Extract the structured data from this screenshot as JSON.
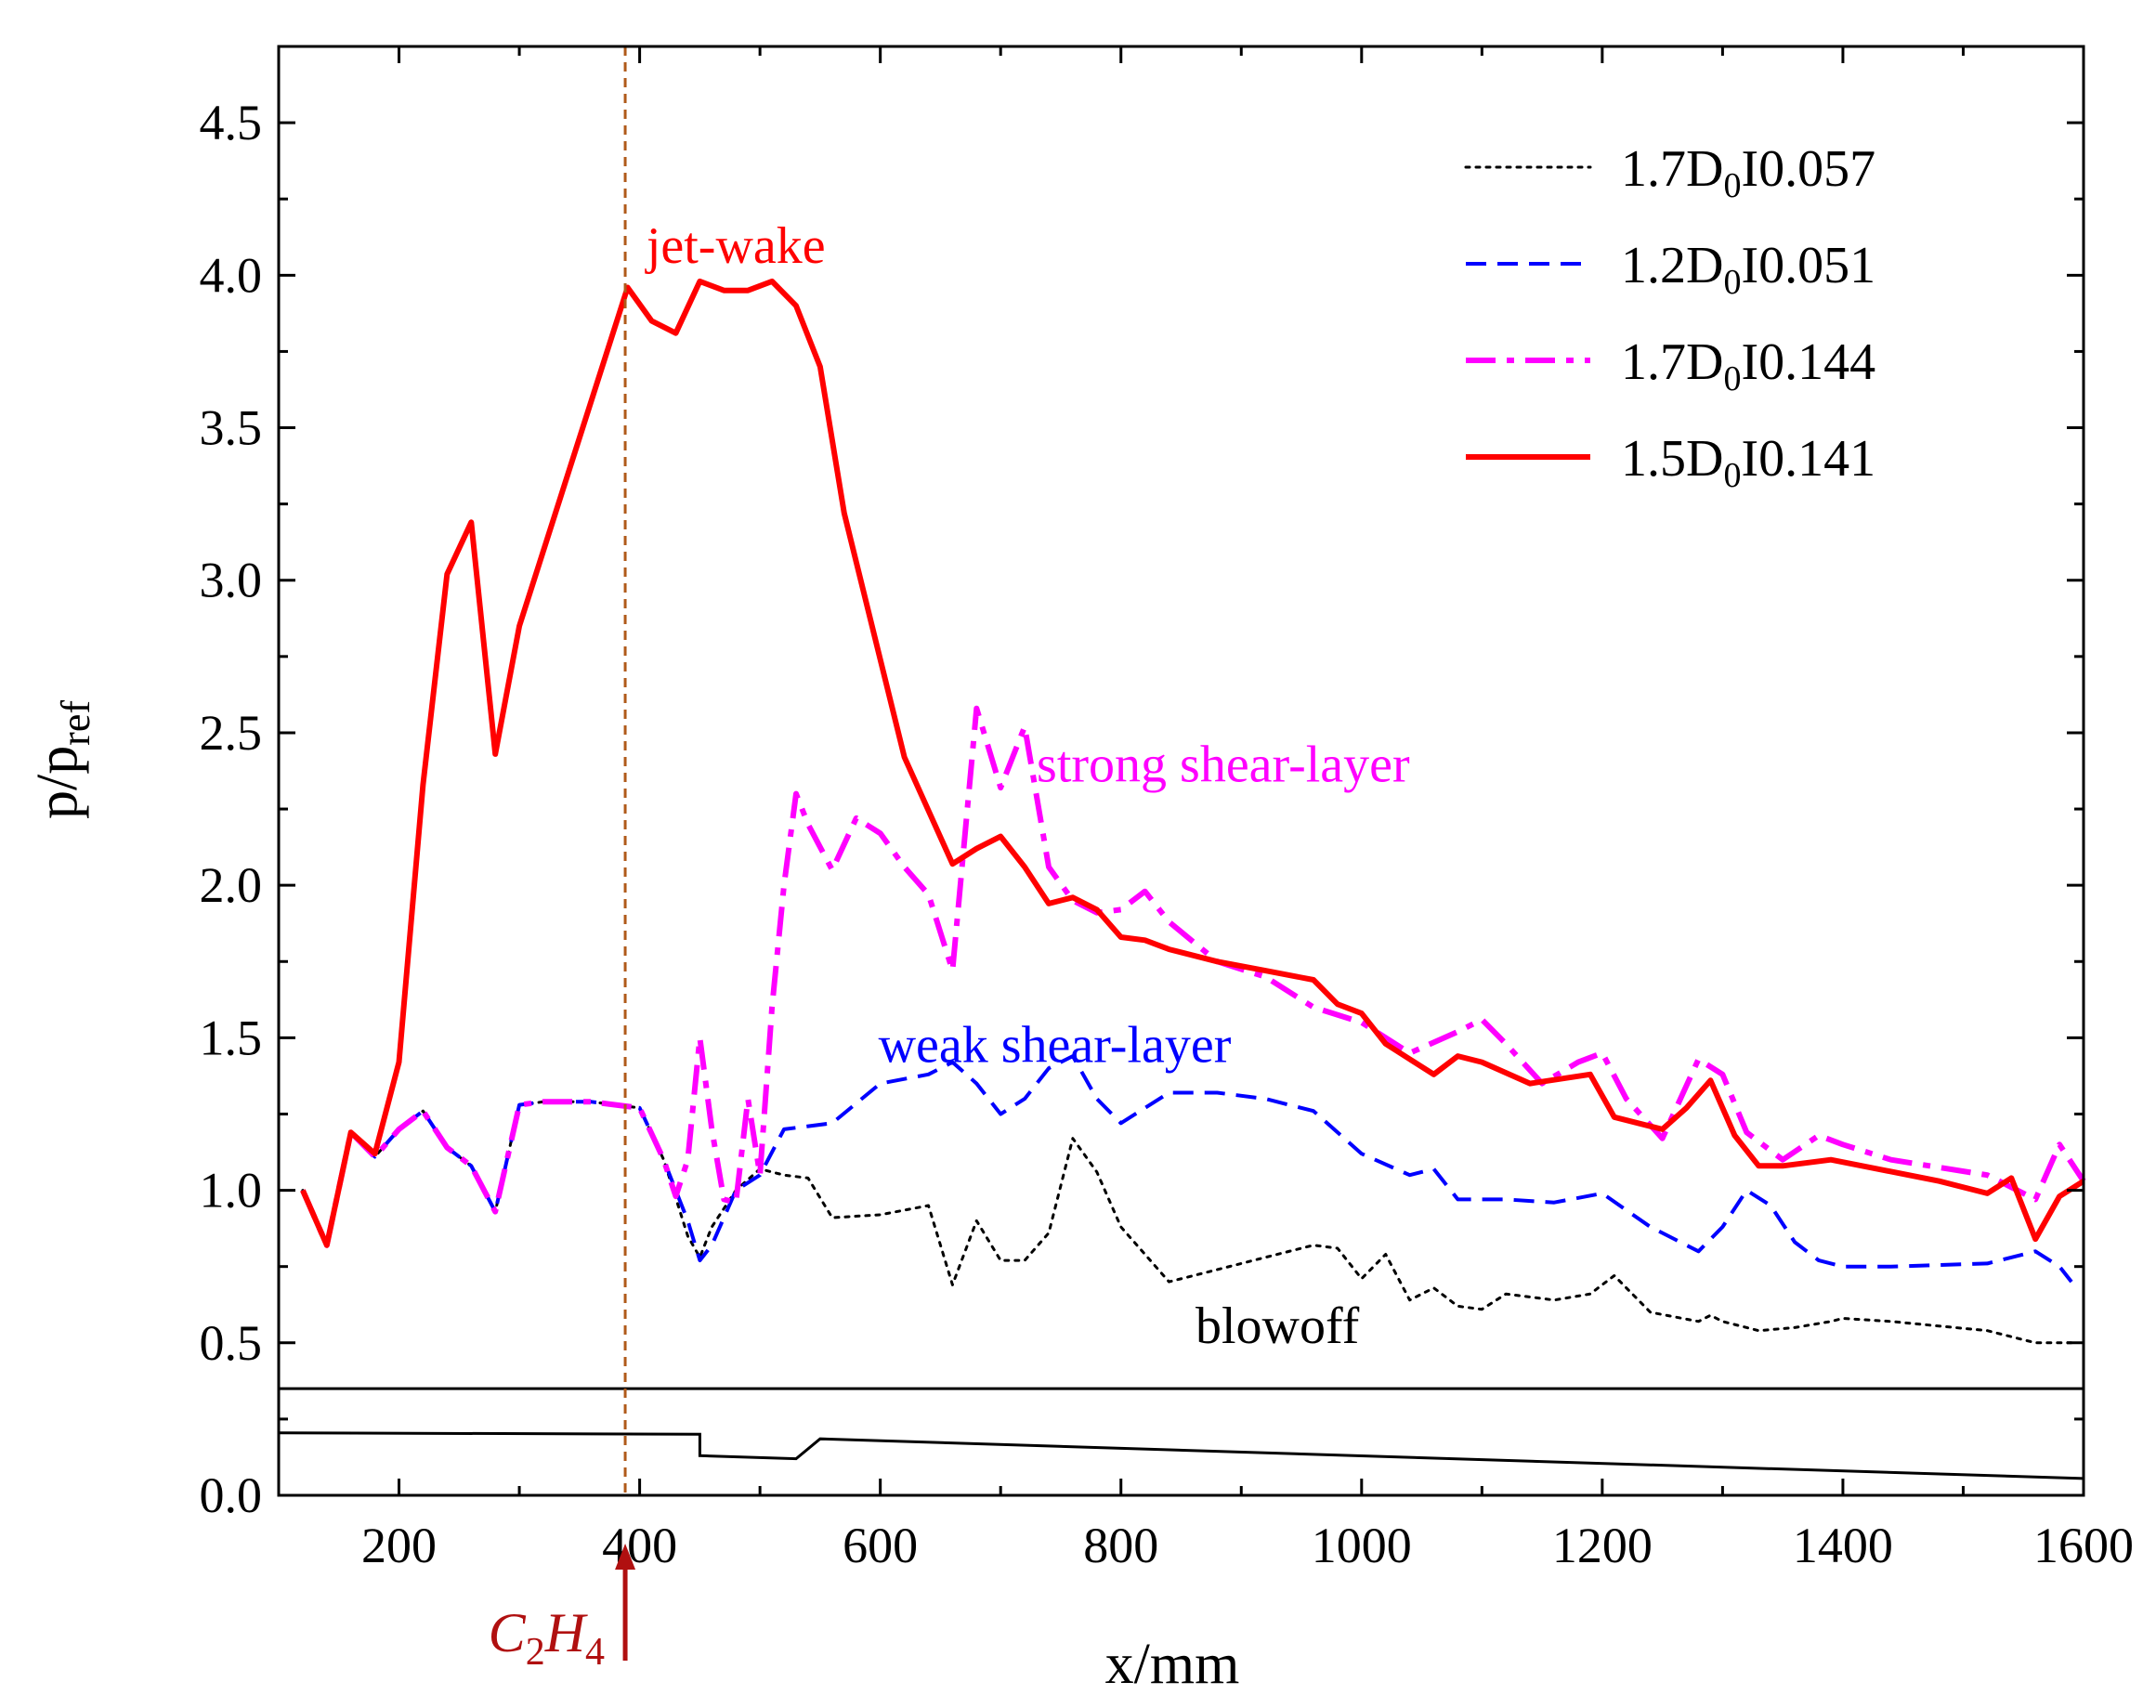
{
  "chart_data": {
    "type": "line",
    "xlabel": "x/mm",
    "ylabel": "p/p",
    "ylabel_sub": "ref",
    "xlim": [
      100,
      1600
    ],
    "ylim": [
      0,
      4.75
    ],
    "xticks": [
      200,
      400,
      600,
      800,
      1000,
      1200,
      1400,
      1600
    ],
    "yticks": [
      0.0,
      0.5,
      1.0,
      1.5,
      2.0,
      2.5,
      3.0,
      3.5,
      4.0,
      4.5
    ],
    "ytick_labels": [
      "0.0",
      "0.5",
      "1.0",
      "1.5",
      "2.0",
      "2.5",
      "3.0",
      "3.5",
      "4.0",
      "4.5"
    ],
    "grid": false,
    "legend_position": "top-right",
    "series": [
      {
        "name": "1.7D0I0.057",
        "legend_pre": "1.7D",
        "legend_sub": "0",
        "legend_post": "I0.057",
        "color": "#000000",
        "style": "dotted",
        "x": [
          120,
          140,
          160,
          180,
          200,
          220,
          240,
          260,
          280,
          300,
          320,
          340,
          360,
          380,
          400,
          420,
          440,
          450,
          460,
          480,
          500,
          520,
          540,
          560,
          600,
          640,
          660,
          680,
          700,
          720,
          740,
          760,
          780,
          800,
          840,
          880,
          920,
          960,
          980,
          1000,
          1020,
          1040,
          1060,
          1080,
          1100,
          1120,
          1160,
          1190,
          1210,
          1240,
          1280,
          1290,
          1300,
          1330,
          1360,
          1390,
          1400,
          1440,
          1520,
          1560,
          1590
        ],
        "y": [
          1.0,
          0.82,
          1.19,
          1.11,
          1.2,
          1.26,
          1.14,
          1.08,
          0.93,
          1.28,
          1.29,
          1.29,
          1.29,
          1.28,
          1.27,
          1.1,
          0.85,
          0.78,
          0.88,
          1.0,
          1.07,
          1.05,
          1.04,
          0.91,
          0.92,
          0.95,
          0.69,
          0.9,
          0.77,
          0.77,
          0.86,
          1.17,
          1.06,
          0.88,
          0.7,
          0.74,
          0.78,
          0.82,
          0.81,
          0.71,
          0.79,
          0.64,
          0.68,
          0.62,
          0.61,
          0.66,
          0.64,
          0.66,
          0.72,
          0.6,
          0.57,
          0.59,
          0.57,
          0.54,
          0.55,
          0.57,
          0.58,
          0.57,
          0.54,
          0.5,
          0.5
        ]
      },
      {
        "name": "1.2D0I0.051",
        "legend_pre": "1.2D",
        "legend_sub": "0",
        "legend_post": "I0.051",
        "color": "#0000ff",
        "style": "dashed",
        "x": [
          120,
          140,
          160,
          180,
          200,
          220,
          240,
          260,
          280,
          300,
          320,
          340,
          360,
          380,
          400,
          420,
          440,
          450,
          460,
          480,
          500,
          520,
          540,
          560,
          600,
          640,
          660,
          680,
          700,
          720,
          740,
          760,
          780,
          800,
          840,
          880,
          920,
          960,
          1000,
          1040,
          1060,
          1080,
          1120,
          1160,
          1200,
          1240,
          1280,
          1300,
          1320,
          1340,
          1360,
          1380,
          1400,
          1440,
          1520,
          1560,
          1580,
          1590
        ],
        "y": [
          1.0,
          0.82,
          1.19,
          1.11,
          1.2,
          1.26,
          1.14,
          1.08,
          0.93,
          1.28,
          1.29,
          1.29,
          1.29,
          1.28,
          1.27,
          1.1,
          0.9,
          0.77,
          0.82,
          1.0,
          1.05,
          1.2,
          1.21,
          1.22,
          1.35,
          1.38,
          1.42,
          1.35,
          1.25,
          1.3,
          1.4,
          1.44,
          1.3,
          1.22,
          1.32,
          1.32,
          1.3,
          1.26,
          1.12,
          1.05,
          1.07,
          0.97,
          0.97,
          0.96,
          0.99,
          0.88,
          0.8,
          0.88,
          1.0,
          0.95,
          0.83,
          0.77,
          0.75,
          0.75,
          0.76,
          0.8,
          0.75,
          0.7
        ]
      },
      {
        "name": "1.7D0I0.144",
        "legend_pre": "1.7D",
        "legend_sub": "0",
        "legend_post": "I0.144",
        "color": "#ff00ff",
        "style": "dashdot",
        "x": [
          120,
          140,
          160,
          180,
          200,
          220,
          240,
          260,
          280,
          300,
          320,
          340,
          360,
          380,
          400,
          420,
          430,
          440,
          450,
          460,
          470,
          480,
          490,
          500,
          510,
          520,
          530,
          540,
          560,
          580,
          600,
          620,
          640,
          660,
          680,
          700,
          720,
          740,
          760,
          780,
          800,
          820,
          840,
          880,
          920,
          960,
          1000,
          1040,
          1080,
          1100,
          1120,
          1150,
          1180,
          1200,
          1220,
          1250,
          1280,
          1300,
          1320,
          1350,
          1380,
          1400,
          1440,
          1520,
          1560,
          1580,
          1600
        ],
        "y": [
          1.0,
          0.82,
          1.19,
          1.11,
          1.2,
          1.26,
          1.14,
          1.08,
          0.93,
          1.28,
          1.29,
          1.29,
          1.29,
          1.28,
          1.27,
          1.1,
          0.98,
          1.1,
          1.5,
          1.2,
          0.97,
          0.96,
          1.3,
          1.05,
          1.6,
          2.0,
          2.3,
          2.2,
          2.05,
          2.22,
          2.17,
          2.06,
          1.97,
          1.72,
          2.58,
          2.32,
          2.52,
          2.06,
          1.95,
          1.91,
          1.92,
          1.98,
          1.88,
          1.75,
          1.7,
          1.6,
          1.55,
          1.45,
          1.52,
          1.56,
          1.48,
          1.35,
          1.42,
          1.45,
          1.3,
          1.17,
          1.43,
          1.38,
          1.19,
          1.1,
          1.18,
          1.15,
          1.1,
          1.05,
          0.97,
          1.15,
          1.03
        ]
      },
      {
        "name": "1.5D0I0.141",
        "legend_pre": "1.5D",
        "legend_sub": "0",
        "legend_post": "I0.141",
        "color": "#ff0000",
        "style": "solid",
        "x": [
          120,
          140,
          160,
          180,
          200,
          220,
          240,
          260,
          280,
          300,
          390,
          410,
          430,
          450,
          470,
          490,
          510,
          530,
          550,
          570,
          620,
          660,
          680,
          700,
          720,
          740,
          760,
          780,
          800,
          820,
          840,
          880,
          920,
          960,
          980,
          1000,
          1020,
          1040,
          1060,
          1080,
          1100,
          1140,
          1190,
          1210,
          1250,
          1270,
          1290,
          1310,
          1330,
          1350,
          1390,
          1480,
          1520,
          1540,
          1560,
          1580,
          1600
        ],
        "y": [
          1.0,
          0.82,
          1.19,
          1.12,
          1.42,
          2.33,
          3.02,
          3.19,
          2.43,
          2.85,
          3.96,
          3.85,
          3.81,
          3.98,
          3.95,
          3.95,
          3.98,
          3.9,
          3.7,
          3.22,
          2.42,
          2.07,
          2.12,
          2.16,
          2.06,
          1.94,
          1.96,
          1.92,
          1.83,
          1.82,
          1.79,
          1.75,
          1.72,
          1.69,
          1.61,
          1.58,
          1.48,
          1.43,
          1.38,
          1.44,
          1.42,
          1.35,
          1.38,
          1.24,
          1.2,
          1.27,
          1.36,
          1.18,
          1.08,
          1.08,
          1.1,
          1.03,
          0.99,
          1.04,
          0.84,
          0.98,
          1.03
        ]
      }
    ],
    "annotations": [
      {
        "text": "jet-wake",
        "color": "#ff0000",
        "x": 480,
        "y": 4.04
      },
      {
        "text": "strong shear-layer",
        "color": "#ff00ff",
        "x": 885,
        "y": 2.34
      },
      {
        "text": "weak shear-layer",
        "color": "#0000ff",
        "x": 745,
        "y": 1.42
      },
      {
        "text": "blowoff",
        "color": "#000000",
        "x": 930,
        "y": 0.5
      }
    ],
    "vline": {
      "x": 388,
      "color": "#b05a1a",
      "style": "dashed"
    },
    "inlet_label": {
      "pre": "C",
      "sub1": "2",
      "mid": "H",
      "sub2": "4",
      "color": "#b01010"
    },
    "geometry_outline": {
      "color": "#000000",
      "top_wall": {
        "x": [
          100,
          1600
        ],
        "y": [
          0.35,
          0.35
        ]
      },
      "bottom_wall": {
        "x": [
          100,
          450,
          450,
          530,
          550,
          1600
        ],
        "y": [
          0.205,
          0.2,
          0.13,
          0.12,
          0.185,
          0.055
        ]
      }
    }
  }
}
